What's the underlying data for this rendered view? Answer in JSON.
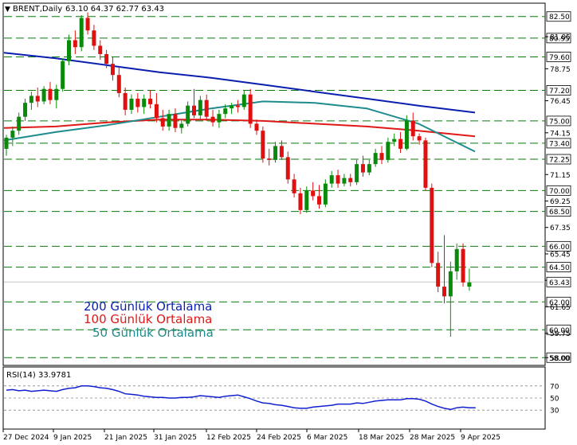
{
  "header": {
    "symbol": "BRENT,Daily",
    "ohlc": "63.10 64.37 62.77 63.43"
  },
  "legend": [
    {
      "label": "200 Günlük Ortalama",
      "color": "#0a1fb0"
    },
    {
      "label": "100 Günlük Ortalama",
      "color": "#e01818"
    },
    {
      "label": "50 Günlük Ortalama",
      "color": "#1e8c8c"
    }
  ],
  "colors": {
    "bull": "#0a8a0a",
    "bear": "#e01010",
    "level_line": "#0a7a0a",
    "grid_bg": "#ffffff",
    "axis": "#000000",
    "price_tag_bg": "#ffffff"
  },
  "chart_data": [
    {
      "type": "candlestick",
      "title": "BRENT,Daily",
      "ylim": [
        57.5,
        83.4
      ],
      "y_ticks": [
        81.05,
        78.75,
        76.45,
        74.15,
        71.15,
        69.25,
        67.35,
        65.45,
        63.55,
        61.65,
        59.75,
        58.0
      ],
      "x_tick_labels": [
        "27 Dec 2024",
        "9 Jan 2025",
        "21 Jan 2025",
        "31 Jan 2025",
        "12 Feb 2025",
        "24 Feb 2025",
        "6 Mar 2025",
        "18 Mar 2025",
        "28 Mar 2025",
        "9 Apr 2025"
      ],
      "horizontal_levels": [
        82.5,
        80.95,
        79.6,
        77.2,
        75.0,
        73.4,
        72.25,
        70.0,
        68.5,
        66.0,
        64.5,
        62.0,
        60.0,
        58.0
      ],
      "level_labels": [
        "82.50",
        "80.95",
        "79.60",
        "77.20",
        "75.00",
        "73.40",
        "72.25",
        "70.00",
        "68.50",
        "66.00",
        "64.50",
        "62.00",
        "60.00",
        "58.00"
      ],
      "y_tick_labels": [
        "81.05",
        "78.75",
        "76.45",
        "74.15",
        "71.15",
        "69.25",
        "67.35",
        "65.45",
        "63.55",
        "61.65",
        "59.75",
        "58.00"
      ],
      "current_price": 63.43,
      "current_price_label": "63.43",
      "candles": [
        [
          73.0,
          74.0,
          72.5,
          73.8
        ],
        [
          73.8,
          74.6,
          73.2,
          74.3
        ],
        [
          74.3,
          75.6,
          74.0,
          75.3
        ],
        [
          75.3,
          76.6,
          75.0,
          76.3
        ],
        [
          76.3,
          77.1,
          75.8,
          76.8
        ],
        [
          76.8,
          77.4,
          76.0,
          76.4
        ],
        [
          76.4,
          77.5,
          76.2,
          77.3
        ],
        [
          77.3,
          77.8,
          76.2,
          76.5
        ],
        [
          76.5,
          77.6,
          75.9,
          77.3
        ],
        [
          77.3,
          79.5,
          77.1,
          79.3
        ],
        [
          79.3,
          81.2,
          79.0,
          80.8
        ],
        [
          80.8,
          81.5,
          79.8,
          80.3
        ],
        [
          80.3,
          82.6,
          80.0,
          82.4
        ],
        [
          82.4,
          82.8,
          81.2,
          81.5
        ],
        [
          81.5,
          81.9,
          80.1,
          80.4
        ],
        [
          80.4,
          80.8,
          79.4,
          79.8
        ],
        [
          79.8,
          80.1,
          78.8,
          79.1
        ],
        [
          79.1,
          79.6,
          77.9,
          78.3
        ],
        [
          78.3,
          78.9,
          76.7,
          77.0
        ],
        [
          77.0,
          77.4,
          75.4,
          75.8
        ],
        [
          75.8,
          76.9,
          75.5,
          76.6
        ],
        [
          76.6,
          77.0,
          75.6,
          76.0
        ],
        [
          76.0,
          76.9,
          75.5,
          76.6
        ],
        [
          76.6,
          77.2,
          75.9,
          76.2
        ],
        [
          76.2,
          77.0,
          74.9,
          75.2
        ],
        [
          75.2,
          75.8,
          74.3,
          74.6
        ],
        [
          74.6,
          75.8,
          74.3,
          75.5
        ],
        [
          75.5,
          75.9,
          74.2,
          74.5
        ],
        [
          74.5,
          75.1,
          74.1,
          74.8
        ],
        [
          74.8,
          76.4,
          74.6,
          76.1
        ],
        [
          76.1,
          77.3,
          75.2,
          75.4
        ],
        [
          75.4,
          76.8,
          75.1,
          76.5
        ],
        [
          76.5,
          76.9,
          75.0,
          75.3
        ],
        [
          75.3,
          75.8,
          74.6,
          74.9
        ],
        [
          74.9,
          75.8,
          74.5,
          75.5
        ],
        [
          75.5,
          76.2,
          75.2,
          75.9
        ],
        [
          75.9,
          76.3,
          75.5,
          76.1
        ],
        [
          76.1,
          76.5,
          75.6,
          76.0
        ],
        [
          76.0,
          77.2,
          75.8,
          76.9
        ],
        [
          76.9,
          77.3,
          74.5,
          74.8
        ],
        [
          74.8,
          75.1,
          74.0,
          74.3
        ],
        [
          74.3,
          74.6,
          72.0,
          72.3
        ],
        [
          72.3,
          73.0,
          71.8,
          72.2
        ],
        [
          72.2,
          73.5,
          72.0,
          73.2
        ],
        [
          73.2,
          73.6,
          72.2,
          72.4
        ],
        [
          72.4,
          72.8,
          70.5,
          70.8
        ],
        [
          70.8,
          71.2,
          69.5,
          69.8
        ],
        [
          69.8,
          70.2,
          68.3,
          68.6
        ],
        [
          68.6,
          70.3,
          68.4,
          70.0
        ],
        [
          70.0,
          70.6,
          69.3,
          69.6
        ],
        [
          69.6,
          70.4,
          68.7,
          69.0
        ],
        [
          69.0,
          70.8,
          68.8,
          70.5
        ],
        [
          70.5,
          71.4,
          70.2,
          71.1
        ],
        [
          71.1,
          71.5,
          70.2,
          70.5
        ],
        [
          70.5,
          71.2,
          70.3,
          70.9
        ],
        [
          70.9,
          71.2,
          70.3,
          70.6
        ],
        [
          70.6,
          72.2,
          70.4,
          71.9
        ],
        [
          71.9,
          72.5,
          71.0,
          71.3
        ],
        [
          71.3,
          72.2,
          71.1,
          71.9
        ],
        [
          71.9,
          73.0,
          71.7,
          72.7
        ],
        [
          72.7,
          73.2,
          71.9,
          72.2
        ],
        [
          72.2,
          73.8,
          72.0,
          73.5
        ],
        [
          73.5,
          74.1,
          73.2,
          73.7
        ],
        [
          73.7,
          74.2,
          72.7,
          73.0
        ],
        [
          73.0,
          75.4,
          72.9,
          75.0
        ],
        [
          75.0,
          75.6,
          73.6,
          73.9
        ],
        [
          73.9,
          74.1,
          73.3,
          73.6
        ],
        [
          73.6,
          73.8,
          70.0,
          70.2
        ],
        [
          70.2,
          70.5,
          64.5,
          64.8
        ],
        [
          64.8,
          65.6,
          62.7,
          63.1
        ],
        [
          63.1,
          66.8,
          61.9,
          62.4
        ],
        [
          62.4,
          64.9,
          59.5,
          64.2
        ],
        [
          64.2,
          66.2,
          63.6,
          65.8
        ],
        [
          65.8,
          66.2,
          63.1,
          63.4
        ],
        [
          63.1,
          64.4,
          62.8,
          63.4
        ]
      ],
      "ma_200": [
        79.9,
        79.5,
        79.0,
        78.5,
        78.1,
        77.6,
        77.1,
        76.6,
        76.1,
        75.6
      ],
      "ma_100": [
        74.5,
        74.6,
        74.9,
        75.1,
        75.1,
        75.0,
        74.8,
        74.6,
        74.3,
        73.9
      ],
      "ma_50": [
        73.6,
        74.2,
        74.7,
        75.3,
        75.9,
        76.4,
        76.3,
        75.9,
        74.8,
        72.8
      ],
      "ma_x_fraction": [
        0,
        0.11,
        0.22,
        0.33,
        0.44,
        0.55,
        0.66,
        0.77,
        0.88,
        1.0
      ]
    },
    {
      "type": "line",
      "title": "RSI(14) 33.9781",
      "ylim": [
        0,
        100
      ],
      "y_ticks": [
        70,
        50,
        30
      ],
      "y_tick_labels": [
        "70",
        "50",
        "30"
      ],
      "series": [
        {
          "values": [
            63,
            64,
            62,
            63,
            61,
            62,
            63,
            62,
            61,
            64,
            66,
            67,
            70,
            70,
            69,
            67,
            66,
            64,
            61,
            57,
            56,
            55,
            53,
            52,
            51,
            51,
            50,
            50,
            51,
            51,
            52,
            54,
            53,
            52,
            51,
            53,
            54,
            55,
            52,
            49,
            45,
            42,
            41,
            39,
            38,
            36,
            34,
            33,
            33,
            35,
            36,
            37,
            38,
            40,
            40,
            40,
            42,
            41,
            43,
            45,
            46,
            47,
            47,
            47,
            49,
            49,
            48,
            45,
            40,
            36,
            33,
            31,
            34,
            35,
            34,
            34
          ]
        }
      ]
    }
  ]
}
